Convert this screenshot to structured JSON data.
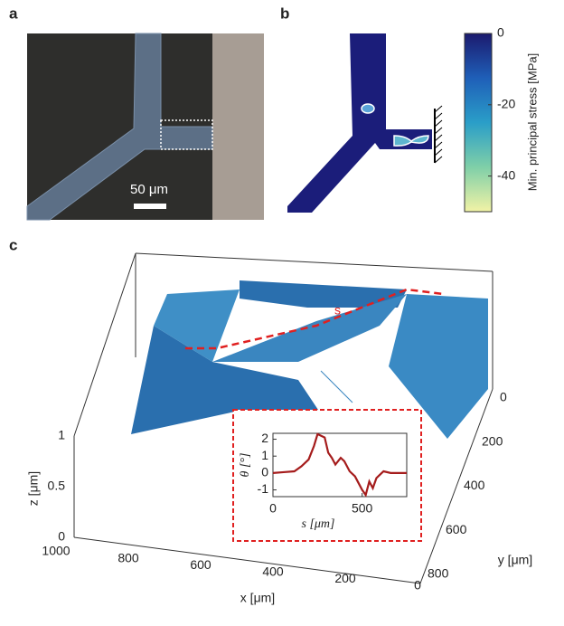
{
  "panel_a": {
    "label": "a",
    "scale_bar": "50 μm"
  },
  "panel_b": {
    "label": "b",
    "colorbar": {
      "label": "Min. principal stress [MPa]",
      "clim": [
        -50,
        0
      ],
      "ticks": [
        0,
        -20,
        -40
      ]
    }
  },
  "panel_c": {
    "label": "c",
    "path_label": "s",
    "z_axis": {
      "label": "z [μm]",
      "ticks": [
        "0",
        "0.5",
        "1"
      ]
    },
    "x_axis": {
      "label": "x [μm]",
      "ticks": [
        "1000",
        "800",
        "600",
        "400",
        "200",
        "0"
      ]
    },
    "y_axis": {
      "label": "y [μm]",
      "ticks": [
        "0",
        "200",
        "400",
        "600",
        "800"
      ]
    },
    "inset": {
      "type": "line",
      "xlabel": "s [μm]",
      "ylabel": "θ [°]",
      "color": "#a51c1c",
      "x": [
        0,
        60,
        120,
        160,
        200,
        230,
        250,
        270,
        290,
        310,
        330,
        350,
        380,
        400,
        430,
        460,
        480,
        500,
        520,
        540,
        560,
        580,
        600,
        620,
        660,
        700,
        750
      ],
      "values": [
        0,
        0.05,
        0.1,
        0.4,
        0.8,
        1.6,
        2.3,
        2.2,
        2.1,
        1.2,
        0.9,
        0.5,
        0.9,
        0.7,
        0.1,
        -0.2,
        -0.6,
        -1.0,
        -1.3,
        -0.5,
        -0.9,
        -0.3,
        -0.1,
        0.1,
        0,
        0,
        0
      ],
      "xlim": [
        0,
        750
      ],
      "ylim": [
        -1.4,
        2.35
      ],
      "xticks": [
        0,
        500
      ],
      "yticks": [
        -1,
        0,
        1,
        2
      ]
    }
  }
}
